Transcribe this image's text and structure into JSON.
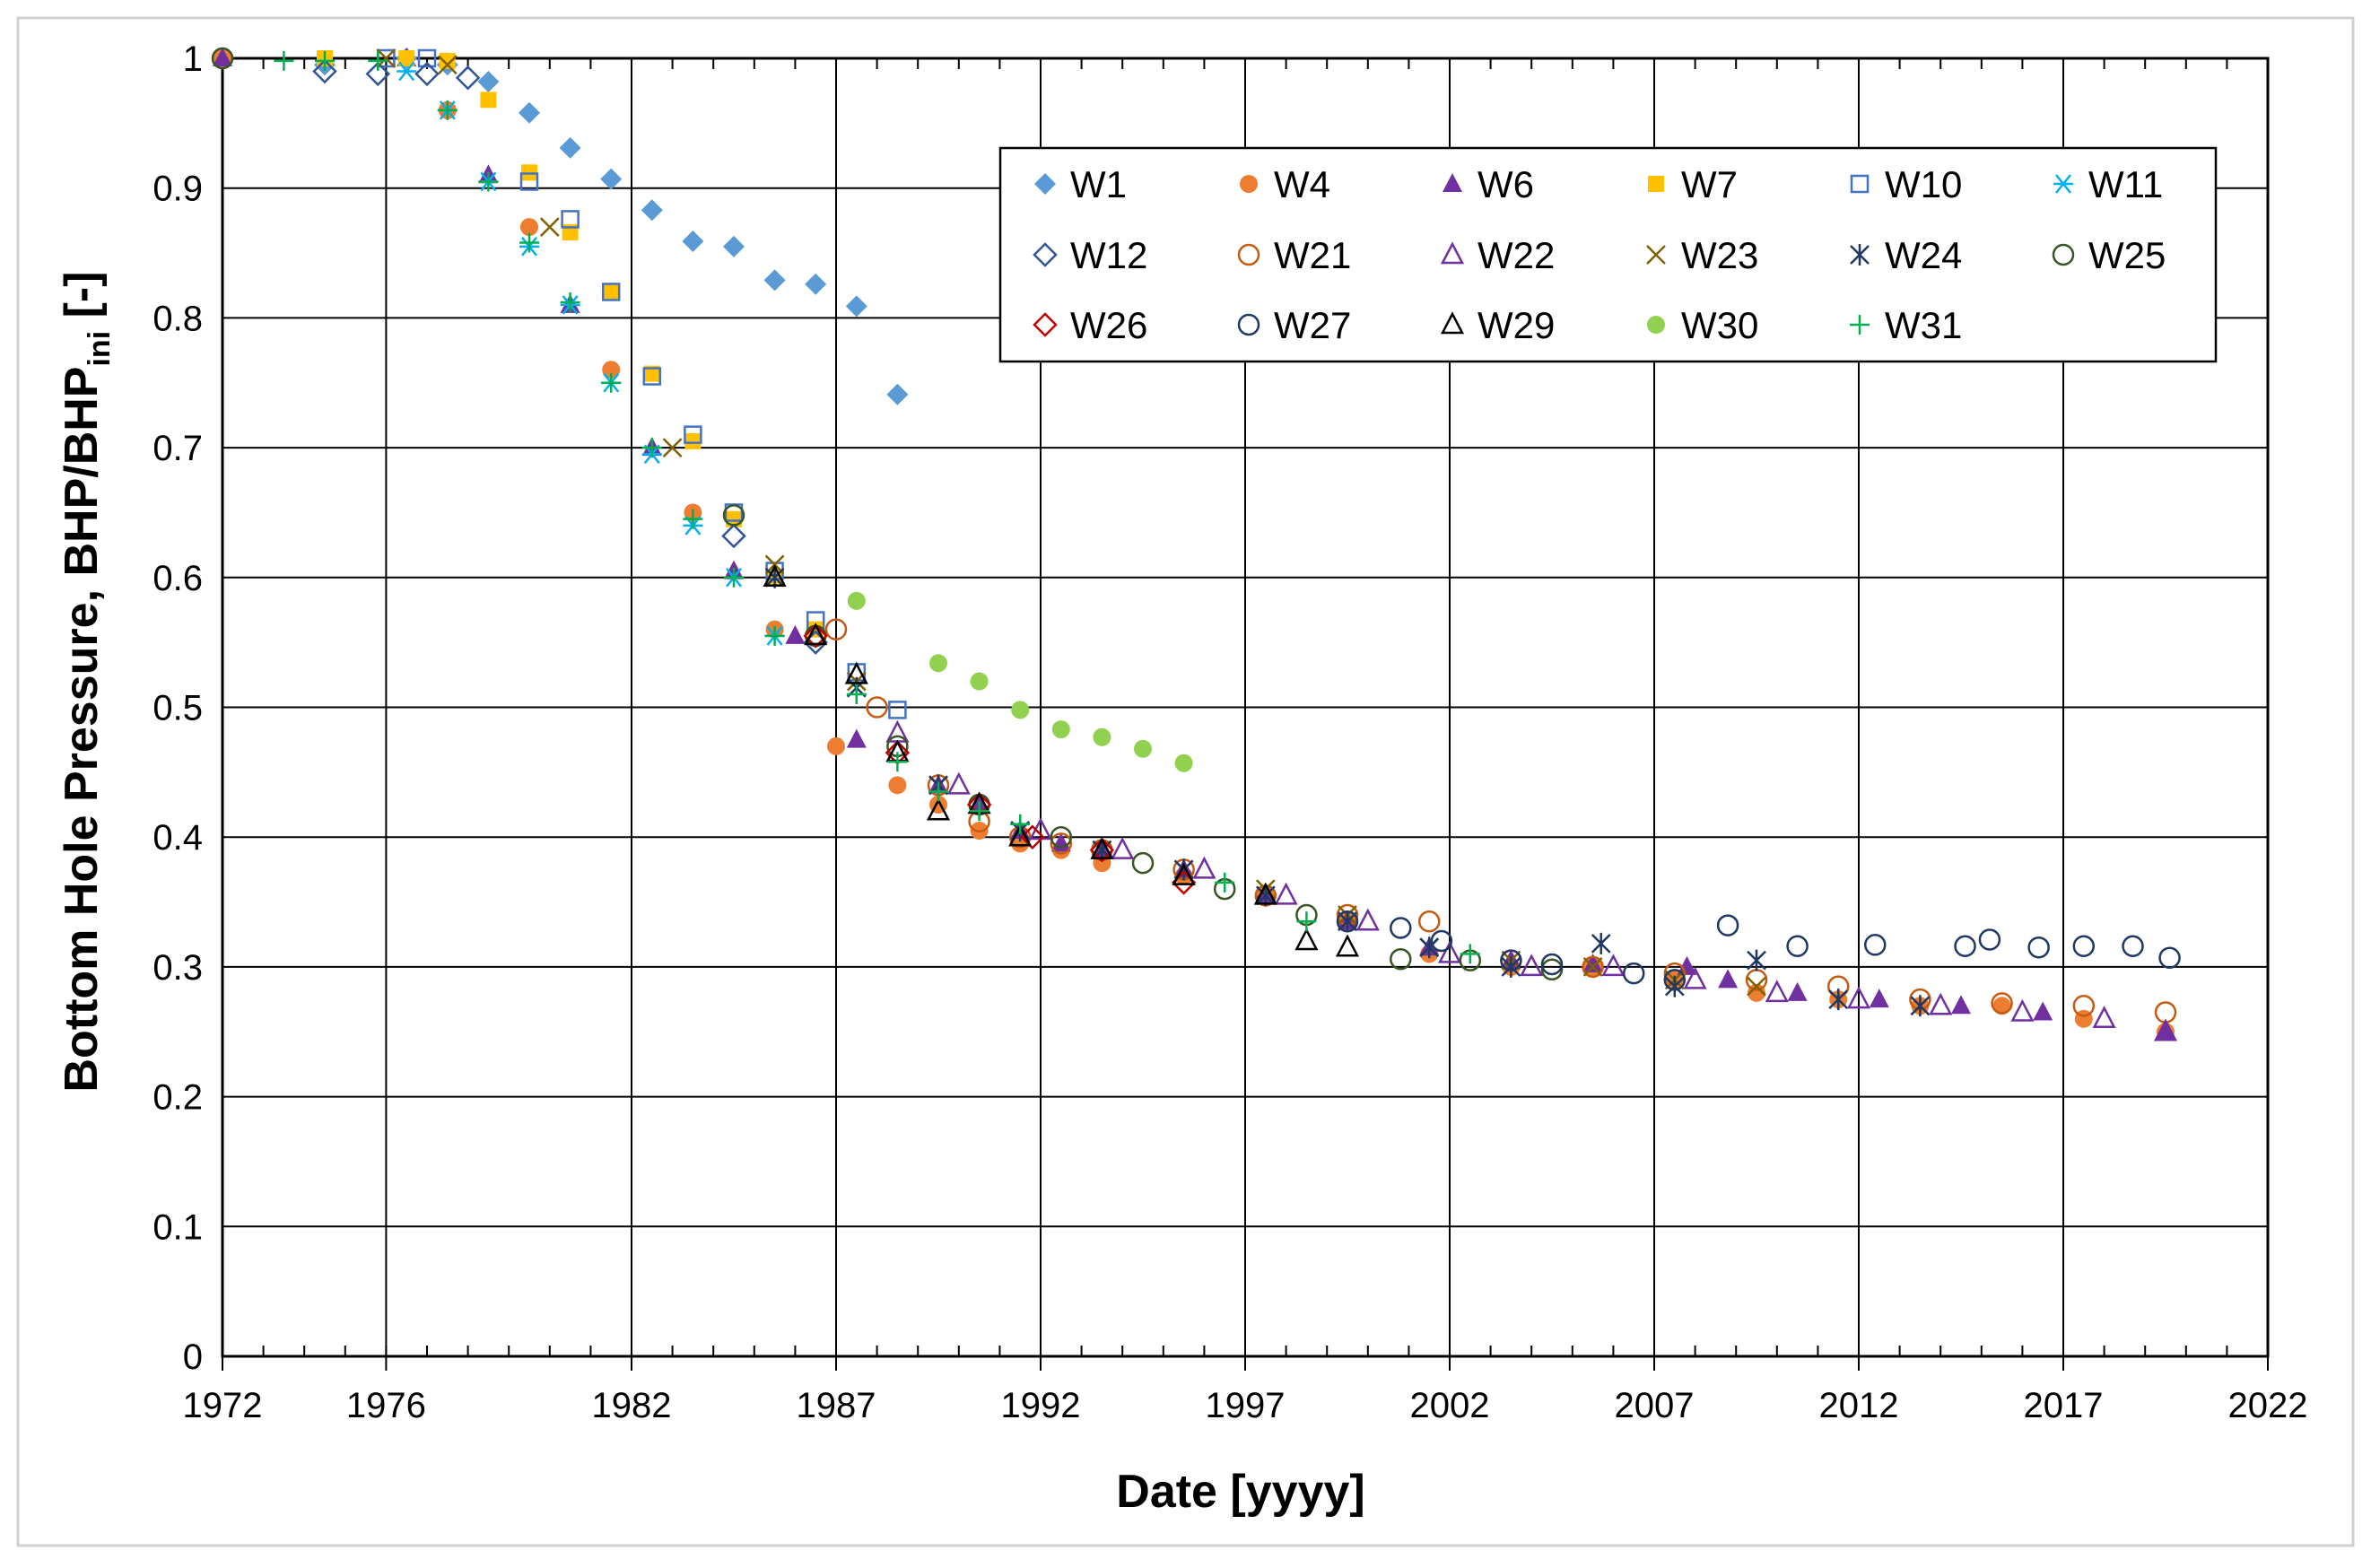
{
  "chart_data": {
    "type": "scatter",
    "title": "",
    "xlabel": "Date [yyyy]",
    "ylabel": {
      "main": "Bottom Hole Pressure, BHP/BHP",
      "subscript": "ini",
      "suffix": " [-]"
    },
    "xlim": [
      1972,
      2022
    ],
    "ylim": [
      0,
      1
    ],
    "x_major_ticks": [
      1972,
      1976,
      1982,
      1987,
      1992,
      1997,
      2002,
      2007,
      2012,
      2017,
      2022
    ],
    "x_tick_labels": [
      "1972",
      "1976",
      "1982",
      "1987",
      "1992",
      "1997",
      "2002",
      "2007",
      "2012",
      "2017",
      "2022"
    ],
    "x_minor_step": 1,
    "y_ticks": [
      0,
      0.1,
      0.2,
      0.3,
      0.4,
      0.5,
      0.6,
      0.7,
      0.8,
      0.9,
      1
    ],
    "y_tick_labels": [
      "0",
      "0.1",
      "0.2",
      "0.3",
      "0.4",
      "0.5",
      "0.6",
      "0.7",
      "0.8",
      "0.9",
      "1"
    ],
    "grid": true,
    "legend_position": "top-right",
    "series": [
      {
        "name": "W1",
        "marker": "diamond-filled",
        "color": "#5B9BD5",
        "x": [
          1972,
          1974.5,
          1976.5,
          1977.5,
          1978.5,
          1979.5,
          1980.5,
          1981.5,
          1982.5,
          1983.5,
          1984.5,
          1985.5,
          1986.5,
          1987.5,
          1988.5
        ],
        "y": [
          1.0,
          0.995,
          1.0,
          0.995,
          0.982,
          0.958,
          0.931,
          0.907,
          0.883,
          0.859,
          0.855,
          0.829,
          0.826,
          0.809,
          0.741
        ]
      },
      {
        "name": "W4",
        "marker": "circle-filled",
        "color": "#ED7D31",
        "x": [
          1972,
          1977.5,
          1979.5,
          1981.5,
          1983.5,
          1985.5,
          1987,
          1988.5,
          1989.5,
          1990.5,
          1991.5,
          1992.5,
          1993.5,
          1995.5,
          1997.5,
          1999.5,
          2001.5,
          2003.5,
          2005.5,
          2007.5,
          2009.5,
          2011.5,
          2013.5,
          2015.5,
          2017.5,
          2019.5
        ],
        "y": [
          1.0,
          0.96,
          0.87,
          0.76,
          0.65,
          0.56,
          0.47,
          0.44,
          0.425,
          0.405,
          0.395,
          0.39,
          0.38,
          0.37,
          0.355,
          0.335,
          0.31,
          0.3,
          0.3,
          0.29,
          0.28,
          0.275,
          0.27,
          0.27,
          0.26,
          0.25
        ]
      },
      {
        "name": "W6",
        "marker": "triangle-filled",
        "color": "#7030A0",
        "x": [
          1972,
          1976.5,
          1978.5,
          1980.5,
          1982.5,
          1984.5,
          1986,
          1987.5,
          1989.5,
          1990.5,
          1991.5,
          1992.5,
          1993.5,
          1995.5,
          1997.5,
          1999.5,
          2001.5,
          2003.5,
          2005.5,
          2007.8,
          2008.8,
          2010.5,
          2012.5,
          2014.5,
          2016.5,
          2019.5
        ],
        "y": [
          1.0,
          1.0,
          0.91,
          0.81,
          0.7,
          0.605,
          0.555,
          0.475,
          0.44,
          0.425,
          0.405,
          0.395,
          0.39,
          0.375,
          0.355,
          0.335,
          0.315,
          0.305,
          0.302,
          0.3,
          0.29,
          0.28,
          0.275,
          0.27,
          0.265,
          0.25
        ]
      },
      {
        "name": "W7",
        "marker": "square-filled",
        "color": "#FFC000",
        "x": [
          1974.5,
          1976.5,
          1977.5,
          1978.5,
          1979.5,
          1980.5,
          1981.5,
          1982.5,
          1983.5,
          1984.5,
          1985.5,
          1986.5
        ],
        "y": [
          1.0,
          1.0,
          0.998,
          0.968,
          0.912,
          0.866,
          0.82,
          0.757,
          0.705,
          0.645,
          0.6,
          0.56
        ]
      },
      {
        "name": "W10",
        "marker": "square-open",
        "color": "#4472C4",
        "x": [
          1976,
          1977,
          1979.5,
          1980.5,
          1981.5,
          1982.5,
          1983.5,
          1984.5,
          1985.5,
          1986.5,
          1987.5,
          1988.5
        ],
        "y": [
          1.0,
          1.0,
          0.905,
          0.876,
          0.82,
          0.755,
          0.71,
          0.65,
          0.605,
          0.567,
          0.527,
          0.498
        ]
      },
      {
        "name": "W11",
        "marker": "asterisk",
        "color": "#00B0F0",
        "x": [
          1976.5,
          1977.5,
          1978.5,
          1979.5,
          1980.5,
          1981.5,
          1982.5,
          1983.5,
          1984.5,
          1985.5
        ],
        "y": [
          0.99,
          0.96,
          0.905,
          0.855,
          0.81,
          0.75,
          0.695,
          0.64,
          0.6,
          0.555
        ]
      },
      {
        "name": "W12",
        "marker": "diamond-open",
        "color": "#2F5597",
        "x": [
          1974.5,
          1975.8,
          1977,
          1978,
          1984.5,
          1986.5
        ],
        "y": [
          0.99,
          0.988,
          0.988,
          0.985,
          0.632,
          0.55
        ]
      },
      {
        "name": "W21",
        "marker": "circle-open",
        "color": "#C55A11",
        "x": [
          1987,
          1988,
          1989.5,
          1990.5,
          1991.5,
          1992.5,
          1993.5,
          1995.5,
          1997.5,
          1999.5,
          2001.5,
          2003.5,
          2005.5,
          2007.5,
          2009.5,
          2011.5,
          2013.5,
          2015.5,
          2017.5,
          2019.5
        ],
        "y": [
          0.56,
          0.5,
          0.44,
          0.412,
          0.4,
          0.395,
          0.39,
          0.375,
          0.355,
          0.34,
          0.335,
          0.305,
          0.3,
          0.295,
          0.29,
          0.285,
          0.275,
          0.272,
          0.27,
          0.265
        ]
      },
      {
        "name": "W22",
        "marker": "triangle-open",
        "color": "#7030A0",
        "x": [
          1988.5,
          1990,
          1992,
          1994,
          1996,
          1998,
          2000,
          2002,
          2004,
          2006,
          2008,
          2010,
          2012,
          2014,
          2016,
          2018,
          2019.5
        ],
        "y": [
          0.48,
          0.44,
          0.405,
          0.39,
          0.375,
          0.355,
          0.335,
          0.31,
          0.3,
          0.3,
          0.29,
          0.28,
          0.275,
          0.27,
          0.265,
          0.26,
          0.25
        ]
      },
      {
        "name": "W23",
        "marker": "x",
        "color": "#806000",
        "x": [
          1976,
          1977.5,
          1980,
          1983,
          1985.5,
          1987.5,
          1989.5,
          1991.5,
          1993.5,
          1995.5,
          1997.5,
          1999.5,
          2001.5,
          2003.5,
          2005.5,
          2007.5,
          2009.5
        ],
        "y": [
          1.0,
          0.995,
          0.87,
          0.7,
          0.61,
          0.52,
          0.44,
          0.405,
          0.39,
          0.375,
          0.36,
          0.34,
          0.315,
          0.305,
          0.3,
          0.29,
          0.285
        ]
      },
      {
        "name": "W24",
        "marker": "star",
        "color": "#203864",
        "x": [
          1985.5,
          1987.5,
          1989.5,
          1991.5,
          1993.5,
          1995.5,
          1997.5,
          1999.5,
          2001.5,
          2003.5,
          2005.7,
          2007.5,
          2009.5,
          2011.5,
          2013.5
        ],
        "y": [
          0.6,
          0.515,
          0.44,
          0.405,
          0.39,
          0.375,
          0.355,
          0.335,
          0.315,
          0.3,
          0.318,
          0.285,
          0.305,
          0.275,
          0.27
        ]
      },
      {
        "name": "W25",
        "marker": "circle-open",
        "color": "#375623",
        "x": [
          1972,
          1984.5,
          1986.5,
          1988.5,
          1990.5,
          1992.5,
          1994.5,
          1996.5,
          1998.5,
          2000.8,
          2002.5,
          2004.5
        ],
        "y": [
          1.0,
          0.648,
          0.555,
          0.47,
          0.425,
          0.4,
          0.38,
          0.36,
          0.34,
          0.306,
          0.305,
          0.298
        ]
      },
      {
        "name": "W26",
        "marker": "diamond-open",
        "color": "#C00000",
        "x": [
          1986.5,
          1988.5,
          1990.5,
          1991.8,
          1993.5,
          1995.5
        ],
        "y": [
          0.555,
          0.465,
          0.425,
          0.4,
          0.39,
          0.365
        ]
      },
      {
        "name": "W27",
        "marker": "circle-open",
        "color": "#1F3864",
        "x": [
          1999.5,
          2000.8,
          2001.8,
          2003.5,
          2004.5,
          2006.5,
          2007.5,
          2008.8,
          2010.5,
          2012.4,
          2014.6,
          2015.2,
          2016.4,
          2017.5,
          2018.7,
          2019.6
        ],
        "y": [
          0.335,
          0.33,
          0.32,
          0.305,
          0.302,
          0.295,
          0.29,
          0.332,
          0.316,
          0.317,
          0.316,
          0.321,
          0.315,
          0.316,
          0.316,
          0.307
        ]
      },
      {
        "name": "W29",
        "marker": "triangle-open",
        "color": "#000000",
        "x": [
          1985.5,
          1986.5,
          1987.5,
          1988.5,
          1989.5,
          1990.5,
          1991.5,
          1993.5,
          1995.5,
          1997.5,
          1998.5,
          1999.5
        ],
        "y": [
          0.6,
          0.555,
          0.525,
          0.465,
          0.42,
          0.425,
          0.4,
          0.39,
          0.37,
          0.355,
          0.32,
          0.315
        ]
      },
      {
        "name": "W30",
        "marker": "circle-filled",
        "color": "#92D050",
        "x": [
          1987.5,
          1989.5,
          1990.5,
          1991.5,
          1992.5,
          1993.5,
          1994.5,
          1995.5
        ],
        "y": [
          0.582,
          0.534,
          0.52,
          0.498,
          0.483,
          0.477,
          0.468,
          0.457
        ]
      },
      {
        "name": "W31",
        "marker": "plus",
        "color": "#00B050",
        "x": [
          1973.5,
          1974.5,
          1975.8,
          1977.5,
          1978.5,
          1979.5,
          1980.5,
          1981.5,
          1982.5,
          1983.5,
          1984.5,
          1985.5,
          1987.5,
          1988.5,
          1989.5,
          1990.5,
          1991.5,
          1996.5,
          1998.5,
          2002.5
        ],
        "y": [
          0.998,
          0.998,
          0.998,
          0.96,
          0.905,
          0.858,
          0.812,
          0.75,
          0.7,
          0.645,
          0.6,
          0.555,
          0.51,
          0.458,
          0.435,
          0.42,
          0.41,
          0.365,
          0.335,
          0.31
        ]
      }
    ]
  }
}
